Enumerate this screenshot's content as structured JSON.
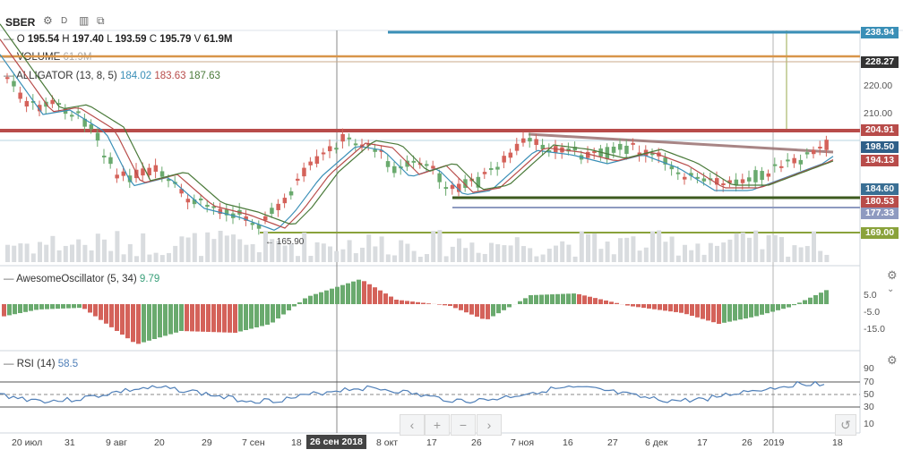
{
  "symbol": "SBER",
  "toolbar": {
    "period": "D"
  },
  "ohlc": {
    "o_label": "O",
    "o": "195.54",
    "h_label": "H",
    "h": "197.40",
    "l_label": "L",
    "l": "193.59",
    "c_label": "C",
    "c": "195.79",
    "v_label": "V",
    "v": "61.9M"
  },
  "volume": {
    "label": "VOLUME",
    "value": "61.9M"
  },
  "alligator": {
    "label": "ALLIGATOR (13, 8, 5)",
    "v1": "184.02",
    "v2": "183.63",
    "v3": "187.63"
  },
  "price_axis": {
    "ticks": [
      "220.00",
      "210.00"
    ]
  },
  "price_tags": [
    "238.94",
    "228.27",
    "204.91",
    "198.50",
    "194.13",
    "184.60",
    "180.53",
    "177.33",
    "169.00"
  ],
  "annotation_low": "165.90",
  "ao": {
    "label": "AwesomeOscillator (5, 34)",
    "value": "9.79",
    "ticks": [
      "5.0",
      "-5.0",
      "-15.0"
    ]
  },
  "rsi": {
    "label": "RSI (14)",
    "value": "58.5",
    "ticks": [
      "90",
      "70",
      "50",
      "30",
      "10"
    ]
  },
  "time_axis": [
    "20 июл",
    "31",
    "9 авг",
    "20",
    "29",
    "7 сен",
    "18",
    "8 окт",
    "17",
    "26",
    "7 ноя",
    "16",
    "27",
    "6 дек",
    "17",
    "26",
    "2019",
    "18"
  ],
  "selected_date": "26 сен 2018",
  "nav_buttons": [
    "‹",
    "+",
    "−",
    "›"
  ],
  "colors": {
    "up": "#6aaa6e",
    "down": "#d4625a",
    "red_line": "#b84c4a",
    "teal_line": "#3a8fb7",
    "orange_line": "#d8954a",
    "olive_line": "#8aa23b"
  }
}
